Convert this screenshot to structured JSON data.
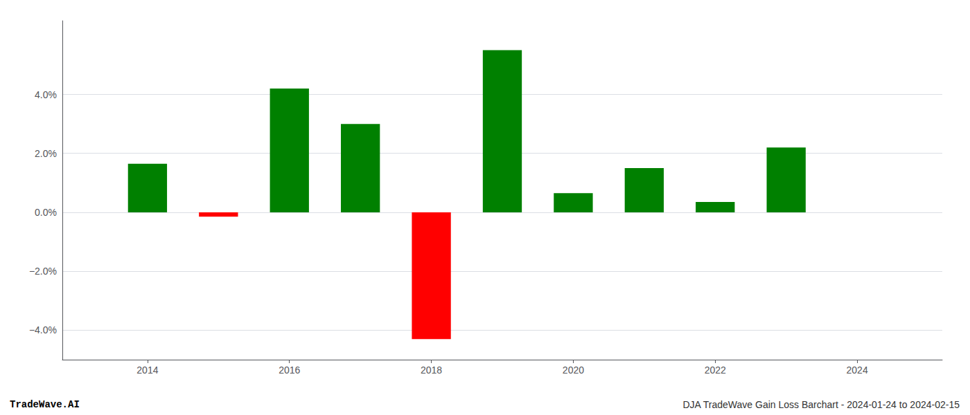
{
  "chart_data": {
    "type": "bar",
    "x": [
      2014,
      2015,
      2016,
      2017,
      2018,
      2019,
      2020,
      2021,
      2022,
      2023
    ],
    "values": [
      1.65,
      -0.15,
      4.2,
      3.0,
      -4.3,
      5.5,
      0.65,
      1.5,
      0.35,
      2.2
    ],
    "colors": [
      "#008000",
      "#ff0000",
      "#008000",
      "#008000",
      "#ff0000",
      "#008000",
      "#008000",
      "#008000",
      "#008000",
      "#008000"
    ],
    "xlim": [
      2012.8,
      2025.2
    ],
    "xticks": [
      2014,
      2016,
      2018,
      2020,
      2022,
      2024
    ],
    "ylim": [
      -5.0,
      6.5
    ],
    "yticks": [
      {
        "value": -4.0,
        "label": "−4.0%"
      },
      {
        "value": -2.0,
        "label": "−2.0%"
      },
      {
        "value": 0.0,
        "label": "0.0%"
      },
      {
        "value": 2.0,
        "label": "2.0%"
      },
      {
        "value": 4.0,
        "label": "4.0%"
      }
    ],
    "grid": true,
    "annotations": [
      "TradeWave.AI",
      "DJA TradeWave Gain Loss Barchart - 2024-01-24 to 2024-02-15"
    ]
  }
}
